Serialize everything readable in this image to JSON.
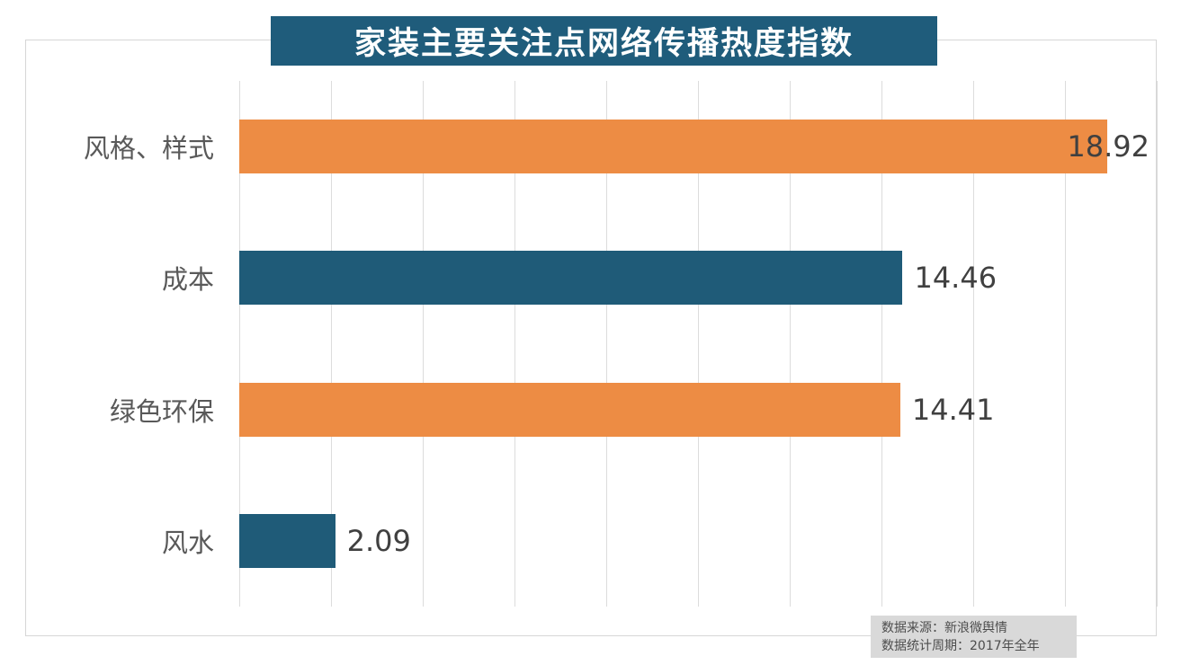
{
  "title": "家装主要关注点网络传播热度指数",
  "source": {
    "line1": "数据来源：新浪微舆情",
    "line2": "数据统计周期：2017年全年"
  },
  "colors": {
    "title_background": "#1f5c7b",
    "bar_orange": "#ed8c44",
    "bar_teal": "#1f5b78",
    "gridline": "#dcdcdc",
    "category_label": "#595959",
    "value_label": "#404040",
    "source_box_background": "#d9d9d9",
    "frame_border": "#d6d6d6"
  },
  "chart_data": {
    "type": "bar",
    "orientation": "horizontal",
    "title": "家装主要关注点网络传播热度指数",
    "categories": [
      "风格、样式",
      "成本",
      "绿色环保",
      "风水"
    ],
    "values": [
      18.92,
      14.46,
      14.41,
      2.09
    ],
    "value_labels": [
      "18.92",
      "14.46",
      "14.41",
      "2.09"
    ],
    "bar_colors": [
      "#ed8c44",
      "#1f5b78",
      "#ed8c44",
      "#1f5b78"
    ],
    "xlabel": "",
    "ylabel": "",
    "xlim": [
      0,
      20
    ],
    "grid_interval": 2,
    "grid": true,
    "legend": false,
    "annotations": [
      "数据来源：新浪微舆情",
      "数据统计周期：2017年全年"
    ]
  }
}
